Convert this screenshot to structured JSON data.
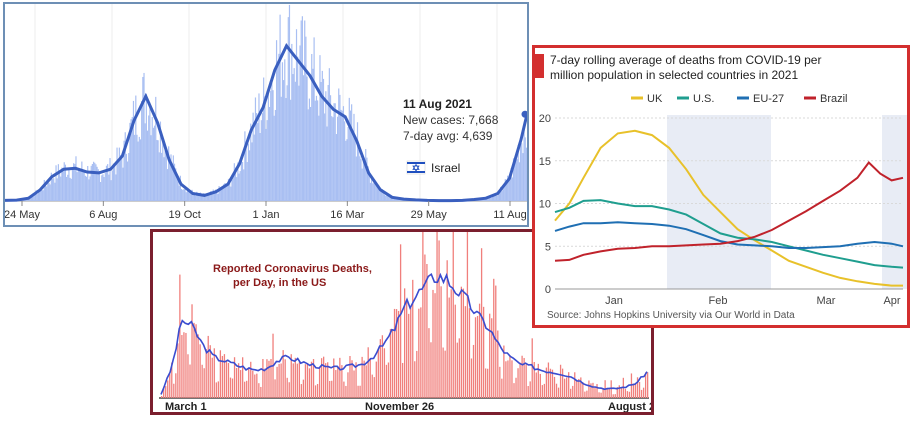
{
  "chart_data": [
    {
      "type": "bar",
      "country": "Israel",
      "x_ticks": [
        "24 May",
        "6 Aug",
        "19 Oct",
        "1 Jan",
        "16 Mar",
        "29 May",
        "11 Aug"
      ],
      "x": [
        0,
        10,
        20,
        30,
        40,
        50,
        60,
        70,
        80,
        90,
        100,
        110,
        120,
        130,
        140,
        150,
        160,
        170,
        180,
        190,
        200,
        210,
        220,
        230,
        240,
        250,
        260,
        270,
        280,
        290,
        300,
        310,
        320,
        330,
        340,
        350,
        360,
        370,
        380,
        390,
        400,
        410,
        420,
        430,
        440,
        445
      ],
      "avg": [
        30,
        50,
        150,
        600,
        1300,
        1700,
        1750,
        1550,
        1500,
        1700,
        2400,
        4300,
        5600,
        4200,
        2200,
        900,
        400,
        300,
        500,
        900,
        2000,
        3800,
        5000,
        7000,
        8300,
        7500,
        6700,
        5600,
        4900,
        4500,
        3200,
        1500,
        600,
        200,
        100,
        60,
        30,
        20,
        20,
        30,
        80,
        150,
        400,
        1200,
        3300,
        4639
      ],
      "tooltip": {
        "date": "11 Aug 2021",
        "new_cases": "New cases: 7,668",
        "avg": "7-day avg: 4,639"
      },
      "legend_label": "Israel"
    },
    {
      "type": "bar",
      "title_line1": "Reported Coronavirus Deaths,",
      "title_line2": "per Day, in the US",
      "x_ticks": [
        "March 1",
        "November 26",
        "August 2"
      ],
      "avg": [
        100,
        800,
        2100,
        1900,
        1400,
        1100,
        1000,
        900,
        800,
        750,
        800,
        1000,
        1100,
        1000,
        900,
        850,
        800,
        800,
        850,
        900,
        1100,
        1400,
        1800,
        2400,
        2700,
        3000,
        3300,
        3200,
        2900,
        2600,
        2200,
        1900,
        1400,
        1100,
        900,
        850,
        750,
        700,
        650,
        550,
        400,
        300,
        250,
        250,
        300,
        400,
        700
      ]
    },
    {
      "type": "line",
      "title": "7-day rolling average of deaths from COVID-19 per million population in selected countries in 2021",
      "source": "Source: Johns Hopkins University via Our World in Data",
      "y_ticks": [
        "0",
        "5",
        "10",
        "15",
        "20"
      ],
      "ylim": [
        0,
        20
      ],
      "x_ticks": [
        "Jan",
        "Feb",
        "Mar",
        "Apr"
      ],
      "series": [
        {
          "name": "UK",
          "color": "#e8c12a",
          "points": [
            [
              0,
              8
            ],
            [
              5,
              10
            ],
            [
              10,
              13
            ],
            [
              16,
              16.5
            ],
            [
              22,
              18.2
            ],
            [
              28,
              18.5
            ],
            [
              34,
              18
            ],
            [
              40,
              16.5
            ],
            [
              46,
              14
            ],
            [
              52,
              11
            ],
            [
              58,
              9
            ],
            [
              64,
              7
            ],
            [
              70,
              5.7
            ],
            [
              76,
              4.5
            ],
            [
              82,
              3.3
            ],
            [
              88,
              2.6
            ],
            [
              94,
              1.9
            ],
            [
              100,
              1.3
            ],
            [
              106,
              0.9
            ],
            [
              112,
              0.6
            ],
            [
              118,
              0.4
            ],
            [
              122,
              0.4
            ]
          ]
        },
        {
          "name": "U.S.",
          "color": "#1f9e8f",
          "points": [
            [
              0,
              9
            ],
            [
              5,
              9.5
            ],
            [
              10,
              10.3
            ],
            [
              16,
              10.4
            ],
            [
              22,
              10
            ],
            [
              28,
              9.7
            ],
            [
              34,
              9.7
            ],
            [
              40,
              9.3
            ],
            [
              46,
              8.7
            ],
            [
              52,
              7.6
            ],
            [
              58,
              6.5
            ],
            [
              64,
              6
            ],
            [
              70,
              5.8
            ],
            [
              76,
              5.5
            ],
            [
              82,
              5
            ],
            [
              88,
              4.5
            ],
            [
              94,
              4
            ],
            [
              100,
              3.6
            ],
            [
              106,
              3.2
            ],
            [
              112,
              2.8
            ],
            [
              118,
              2.6
            ],
            [
              122,
              2.5
            ]
          ]
        },
        {
          "name": "EU-27",
          "color": "#1f6fb3",
          "points": [
            [
              0,
              6.8
            ],
            [
              5,
              7.3
            ],
            [
              10,
              7.7
            ],
            [
              16,
              7.7
            ],
            [
              22,
              7.8
            ],
            [
              28,
              7.7
            ],
            [
              34,
              7.6
            ],
            [
              40,
              7.4
            ],
            [
              46,
              7
            ],
            [
              52,
              6.3
            ],
            [
              58,
              5.6
            ],
            [
              64,
              5.2
            ],
            [
              70,
              5.1
            ],
            [
              76,
              5
            ],
            [
              82,
              4.8
            ],
            [
              88,
              4.8
            ],
            [
              94,
              4.9
            ],
            [
              100,
              5
            ],
            [
              106,
              5.3
            ],
            [
              112,
              5.5
            ],
            [
              118,
              5.3
            ],
            [
              122,
              5
            ]
          ]
        },
        {
          "name": "Brazil",
          "color": "#c0222b",
          "points": [
            [
              0,
              3.3
            ],
            [
              5,
              3.4
            ],
            [
              10,
              4
            ],
            [
              16,
              4.4
            ],
            [
              22,
              4.7
            ],
            [
              28,
              4.8
            ],
            [
              34,
              5
            ],
            [
              40,
              5
            ],
            [
              46,
              5.1
            ],
            [
              52,
              5.2
            ],
            [
              58,
              5.3
            ],
            [
              64,
              5.6
            ],
            [
              70,
              6.1
            ],
            [
              76,
              6.9
            ],
            [
              82,
              8
            ],
            [
              88,
              9.1
            ],
            [
              94,
              10.3
            ],
            [
              100,
              11.5
            ],
            [
              106,
              13
            ],
            [
              110,
              14.8
            ],
            [
              114,
              13.5
            ],
            [
              118,
              12.7
            ],
            [
              122,
              13
            ]
          ]
        }
      ]
    }
  ]
}
